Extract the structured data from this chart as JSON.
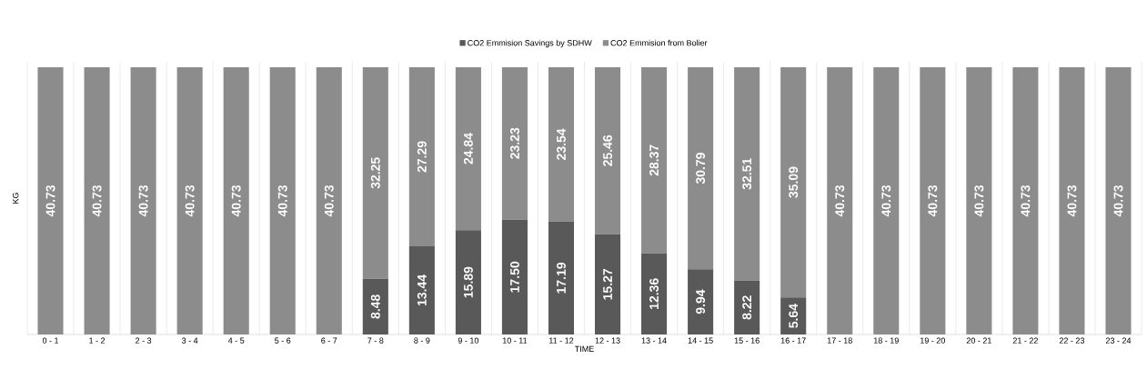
{
  "chart_data": {
    "type": "bar",
    "stacked": true,
    "xlabel": "TIME",
    "ylabel": "KG",
    "tick_labels": "x",
    "grid": "x",
    "legend": "top",
    "categories": [
      "0 - 1",
      "1 - 2",
      "2 - 3",
      "3 - 4",
      "4 - 5",
      "5 - 6",
      "6 - 7",
      "7 - 8",
      "8 - 9",
      "9 - 10",
      "10 - 11",
      "11 - 12",
      "12 - 13",
      "13 - 14",
      "14 - 15",
      "15 - 16",
      "16 - 17",
      "17 - 18",
      "18 - 19",
      "19 - 20",
      "20 - 21",
      "21 - 22",
      "22 - 23",
      "23 - 24"
    ],
    "series": [
      {
        "name": "CO2 Emmision Savings by SDHW",
        "color": "#595959",
        "values": [
          null,
          null,
          null,
          null,
          null,
          null,
          null,
          8.48,
          13.44,
          15.89,
          17.5,
          17.19,
          15.27,
          12.36,
          9.94,
          8.22,
          5.64,
          null,
          null,
          null,
          null,
          null,
          null,
          null
        ],
        "value_labels": [
          null,
          null,
          null,
          null,
          null,
          null,
          null,
          "8.48",
          "13.44",
          "15.89",
          "17.50",
          "17.19",
          "15.27",
          "12.36",
          "9.94",
          "8.22",
          "5.64",
          null,
          null,
          null,
          null,
          null,
          null,
          null
        ]
      },
      {
        "name": "CO2 Emmision from Bolier",
        "color": "#8c8c8c",
        "values": [
          40.73,
          40.73,
          40.73,
          40.73,
          40.73,
          40.73,
          40.73,
          32.25,
          27.29,
          24.84,
          23.23,
          23.54,
          25.46,
          28.37,
          30.79,
          32.51,
          35.09,
          40.73,
          40.73,
          40.73,
          40.73,
          40.73,
          40.73,
          40.73
        ],
        "value_labels": [
          "40.73",
          "40.73",
          "40.73",
          "40.73",
          "40.73",
          "40.73",
          "40.73",
          "32.25",
          "27.29",
          "24.84",
          "23.23",
          "23.54",
          "25.46",
          "28.37",
          "30.79",
          "32.51",
          "35.09",
          "40.73",
          "40.73",
          "40.73",
          "40.73",
          "40.73",
          "40.73",
          "40.73"
        ]
      }
    ]
  }
}
